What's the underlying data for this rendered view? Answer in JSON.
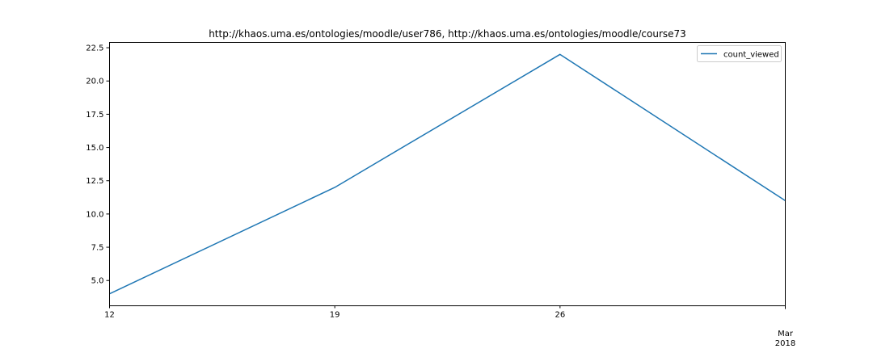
{
  "chart_data": {
    "type": "line",
    "title": "http://khaos.uma.es/ontologies/moodle/user786, http://khaos.uma.es/ontologies/moodle/course73",
    "xlabel": "",
    "ylabel": "",
    "x": [
      "2018-02-12",
      "2018-02-19",
      "2018-02-26",
      "2018-03-05"
    ],
    "x_tick_labels": [
      {
        "date": "2018-02-12",
        "label": "12"
      },
      {
        "date": "2018-02-19",
        "label": "19"
      },
      {
        "date": "2018-02-26",
        "label": "26"
      },
      {
        "date": "2018-03-01",
        "label": "Mar",
        "label2": "2018"
      }
    ],
    "xlim": [
      "2018-02-12",
      "2018-03-05"
    ],
    "series": [
      {
        "name": "count_viewed",
        "values": [
          4,
          12,
          22,
          11
        ],
        "color": "#1f77b4"
      }
    ],
    "ylim": [
      3.1,
      22.9
    ],
    "y_ticks": [
      "5.0",
      "7.5",
      "10.0",
      "12.5",
      "15.0",
      "17.5",
      "20.0",
      "22.5"
    ],
    "grid": false,
    "legend_position": "top-right"
  }
}
